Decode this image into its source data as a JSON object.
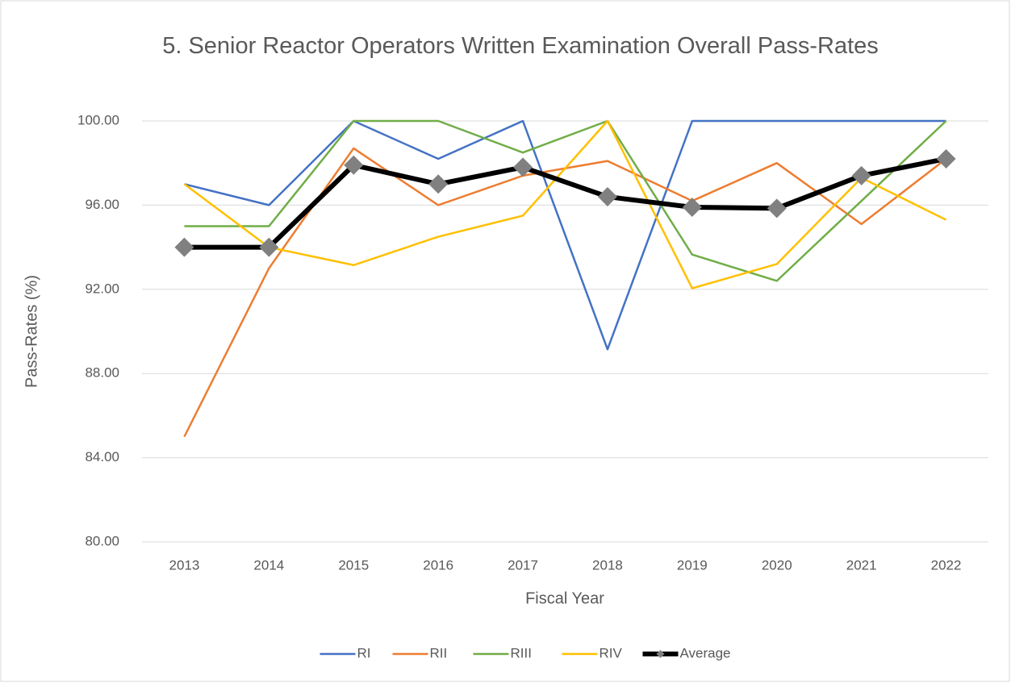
{
  "chart_data": {
    "type": "line",
    "title": "5. Senior Reactor Operators Written Examination Overall Pass-Rates",
    "x_label": "Fiscal Year",
    "y_label": "Pass-Rates (%)",
    "categories": [
      "2013",
      "2014",
      "2015",
      "2016",
      "2017",
      "2018",
      "2019",
      "2020",
      "2021",
      "2022"
    ],
    "series": [
      {
        "name": "RI",
        "color": "#4472c4",
        "values": [
          97,
          96,
          100,
          98.2,
          100,
          89.15,
          100,
          100,
          100,
          100
        ]
      },
      {
        "name": "RII",
        "color": "#ed7d31",
        "values": [
          85,
          93,
          98.7,
          96,
          97.4,
          98.1,
          96.2,
          98,
          95.1,
          98.2
        ]
      },
      {
        "name": "RIII",
        "color": "#70ad47",
        "values": [
          95,
          95,
          100,
          100,
          98.5,
          100,
          93.65,
          92.4,
          96.2,
          100
        ]
      },
      {
        "name": "RIV",
        "color": "#ffc000",
        "values": [
          97,
          94,
          93.15,
          94.5,
          95.5,
          100,
          92.05,
          93.2,
          97.3,
          95.3
        ]
      },
      {
        "name": "Average",
        "color": "#000000",
        "marker_color": "#808080",
        "values": [
          94,
          94,
          97.9,
          97,
          97.8,
          96.4,
          95.9,
          95.85,
          97.4,
          98.2
        ]
      }
    ],
    "ylim": [
      80,
      100
    ],
    "yticks": [
      {
        "value": 80,
        "label": "80.00"
      },
      {
        "value": 84,
        "label": "84.00"
      },
      {
        "value": 88,
        "label": "88.00"
      },
      {
        "value": 92,
        "label": "92.00"
      },
      {
        "value": 96,
        "label": "96.00"
      },
      {
        "value": 100,
        "label": "100.00"
      }
    ],
    "grid": true,
    "legend": "bottom"
  }
}
